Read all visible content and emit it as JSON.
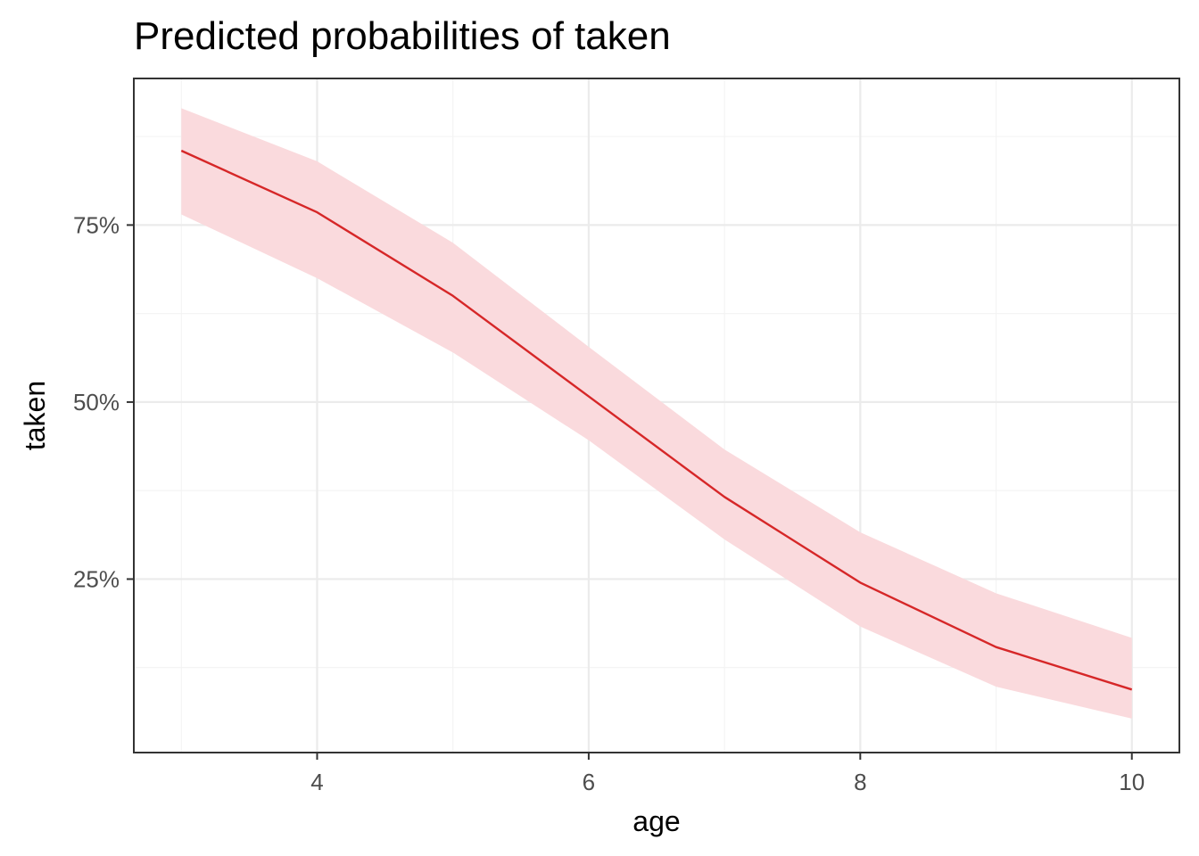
{
  "chart_data": {
    "type": "line",
    "title": "Predicted probabilities of taken",
    "xlabel": "age",
    "ylabel": "taken",
    "xlim": [
      2.65,
      10.35
    ],
    "ylim": [
      0.005,
      0.957
    ],
    "x_ticks": [
      {
        "value": 4,
        "label": "4"
      },
      {
        "value": 6,
        "label": "6"
      },
      {
        "value": 8,
        "label": "8"
      },
      {
        "value": 10,
        "label": "10"
      }
    ],
    "x_minor": [
      3,
      5,
      7,
      9
    ],
    "y_ticks": [
      {
        "value": 0.25,
        "label": "25%"
      },
      {
        "value": 0.5,
        "label": "50%"
      },
      {
        "value": 0.75,
        "label": "75%"
      }
    ],
    "y_minor": [
      0.125,
      0.375,
      0.625,
      0.875
    ],
    "grid": true,
    "legend": "none",
    "series": [
      {
        "x": [
          3,
          4,
          5,
          6,
          7,
          8,
          9,
          10
        ],
        "y": [
          0.855,
          0.768,
          0.65,
          0.508,
          0.366,
          0.245,
          0.154,
          0.094
        ],
        "lower": [
          0.765,
          0.675,
          0.57,
          0.446,
          0.306,
          0.183,
          0.098,
          0.053
        ],
        "upper": [
          0.915,
          0.84,
          0.725,
          0.578,
          0.433,
          0.316,
          0.23,
          0.167
        ],
        "color": "#d62728",
        "band_color": "#fadadd"
      }
    ]
  }
}
